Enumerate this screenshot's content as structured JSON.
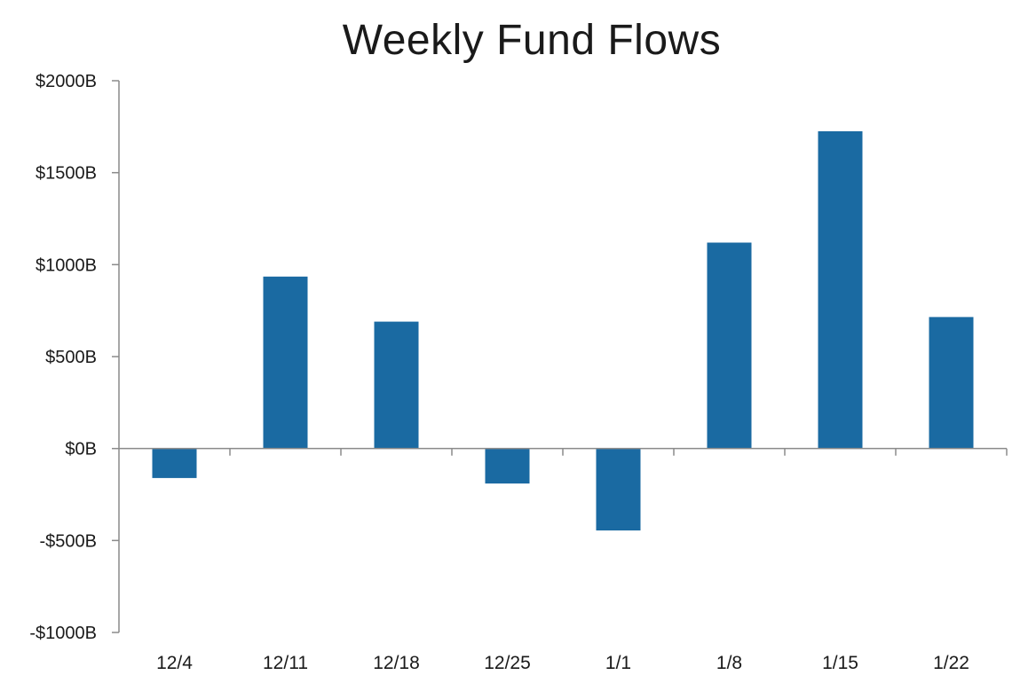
{
  "chart_data": {
    "type": "bar",
    "title": "Weekly Fund Flows",
    "xlabel": "",
    "ylabel": "",
    "categories": [
      "12/4",
      "12/11",
      "12/18",
      "12/25",
      "1/1",
      "1/8",
      "1/15",
      "1/22"
    ],
    "values": [
      -160,
      935,
      690,
      -190,
      -445,
      1120,
      1725,
      715
    ],
    "ylim": [
      -1000,
      2000
    ],
    "yticks": [
      2000,
      1500,
      1000,
      500,
      0,
      -500,
      -1000
    ],
    "ytick_labels": [
      "$2000B",
      "$1500B",
      "$1000B",
      "$500B",
      "$0B",
      "-$500B",
      "-$1000B"
    ],
    "bar_color": "#1a6aa2",
    "axis_color": "#8a8a8a",
    "grid": false,
    "legend": "none"
  }
}
